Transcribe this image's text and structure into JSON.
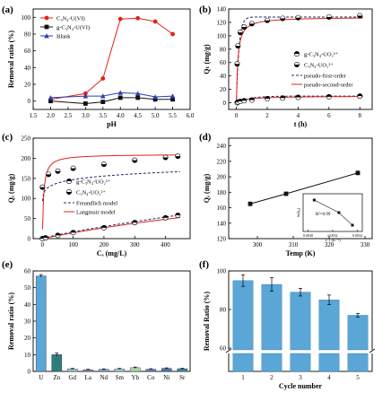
{
  "panels": {
    "a": {
      "letter": "(a)"
    },
    "b": {
      "letter": "(b)"
    },
    "c": {
      "letter": "(c)"
    },
    "d": {
      "letter": "(d)"
    },
    "e": {
      "letter": "(e)"
    },
    "f": {
      "letter": "(f)"
    }
  },
  "colors": {
    "red": "#e2231a",
    "black": "#111111",
    "blue": "#2b3fb0",
    "navy": "#1f2a6e",
    "teal": "#2e7d78",
    "lightblue": "#5aa6d6",
    "gray": "#9a9a9a"
  },
  "chart_data": [
    {
      "id": "a",
      "type": "line",
      "xlabel": "pH",
      "ylabel": "Removal ratio (%)",
      "xlim": [
        1.5,
        6.0
      ],
      "ylim": [
        -10,
        110
      ],
      "xticks": [
        1.5,
        2.0,
        2.5,
        3.0,
        3.5,
        4.0,
        4.5,
        5.0,
        5.5,
        6.0
      ],
      "xticklabels": [
        "1.5",
        "2.0",
        "2.5",
        "3.0",
        "3.5",
        "4.0",
        "4.5",
        "5.0",
        "5.5",
        "6.0"
      ],
      "yticks": [
        0,
        20,
        40,
        60,
        80,
        100
      ],
      "legend": "top-left",
      "series": [
        {
          "name": "C₃N₄-U(VI)",
          "color": "#e2231a",
          "marker": "circle",
          "x": [
            2.0,
            3.0,
            3.5,
            4.0,
            4.5,
            5.0,
            5.5
          ],
          "y": [
            2,
            9,
            27,
            98,
            99,
            95,
            80
          ]
        },
        {
          "name": "g-C₃N₄-U(VI)",
          "color": "#111111",
          "marker": "square",
          "x": [
            2.0,
            3.0,
            3.5,
            4.0,
            4.5,
            5.0,
            5.5
          ],
          "y": [
            0,
            -3,
            -1,
            4,
            4,
            2,
            2
          ]
        },
        {
          "name": "Blank",
          "color": "#2b3fb0",
          "marker": "triangle",
          "x": [
            2.0,
            3.0,
            3.5,
            4.0,
            4.5,
            5.0,
            5.5
          ],
          "y": [
            4,
            6,
            6,
            10,
            9,
            5,
            6
          ]
        }
      ]
    },
    {
      "id": "b",
      "type": "scatter",
      "xlabel": "t (h)",
      "ylabel": "Qₜ (mg/g)",
      "xlim": [
        -0.5,
        8.8
      ],
      "ylim": [
        -10,
        140
      ],
      "xticks": [
        0,
        2,
        4,
        6,
        8
      ],
      "yticks": [
        0,
        20,
        40,
        60,
        80,
        100,
        120,
        140
      ],
      "legend": "center-right",
      "series": [
        {
          "name": "g-C₃N₄-UO₂²⁺",
          "marker": "half-top",
          "x": [
            0.05,
            0.1,
            0.25,
            0.5,
            1,
            2,
            3,
            4,
            6,
            8
          ],
          "y": [
            0,
            1,
            2,
            3,
            4,
            6,
            7,
            8,
            9,
            10
          ]
        },
        {
          "name": "C₃N₄-UO₂²⁺",
          "marker": "half-bottom",
          "x": [
            0.05,
            0.1,
            0.25,
            0.5,
            1,
            2,
            3,
            4,
            6,
            8
          ],
          "y": [
            58,
            85,
            105,
            113,
            118,
            123,
            126,
            127,
            128,
            130
          ]
        }
      ],
      "fits": [
        {
          "name": "pseudo-first-order",
          "style": "dashed",
          "color": "#1f2a6e"
        },
        {
          "name": "pseudo-second-order",
          "style": "solid",
          "color": "#e2231a"
        }
      ]
    },
    {
      "id": "c",
      "type": "scatter",
      "xlabel": "Cₑ (mg/L)",
      "ylabel": "Qₑ (mg/g)",
      "xlim": [
        -30,
        480
      ],
      "ylim": [
        0,
        250
      ],
      "xticks": [
        0,
        100,
        200,
        300,
        400
      ],
      "yticks": [
        0,
        50,
        100,
        150,
        200,
        250
      ],
      "legend": "center-right",
      "series": [
        {
          "name": "g-C₃N₄-UO₂²⁺",
          "marker": "half-top",
          "x": [
            0,
            10,
            50,
            100,
            200,
            300,
            400,
            440
          ],
          "y": [
            0,
            2,
            8,
            15,
            27,
            40,
            52,
            58
          ]
        },
        {
          "name": "C₃N₄-UO₂²⁺",
          "marker": "half-bottom",
          "x": [
            0,
            20,
            50,
            100,
            200,
            300,
            400,
            440
          ],
          "y": [
            128,
            160,
            168,
            175,
            185,
            195,
            202,
            205
          ]
        }
      ],
      "fits": [
        {
          "name": "Freundlich model",
          "style": "dashed",
          "color": "#1f2a6e"
        },
        {
          "name": "Langmuir model",
          "style": "solid",
          "color": "#e2231a"
        }
      ]
    },
    {
      "id": "d",
      "type": "line",
      "xlabel": "Temp (K)",
      "ylabel": "Qₑ (mg/g)",
      "xlim": [
        292,
        332
      ],
      "ylim": [
        120,
        250
      ],
      "xticks": [
        300,
        310,
        320,
        330
      ],
      "yticks": [
        120,
        140,
        160,
        180,
        200,
        220,
        240
      ],
      "series": [
        {
          "name": "",
          "color": "#111111",
          "marker": "square",
          "x": [
            298,
            308,
            328
          ],
          "y": [
            165,
            178,
            205
          ]
        }
      ],
      "inset": {
        "xlabel": "1/T (K⁻¹)",
        "ylabel": "ln(k₀)",
        "annotation": "R²=0.99",
        "xticks": [
          0.003,
          0.0032,
          0.0034
        ],
        "xticklabels": [
          "0.0030",
          "0.0032",
          "0.0034"
        ],
        "x": [
          0.00305,
          0.00325,
          0.00336
        ],
        "y": [
          0.9,
          0.7,
          0.5
        ]
      }
    },
    {
      "id": "e",
      "type": "bar",
      "xlabel": "",
      "ylabel": "Removal ratio (%)",
      "ylim": [
        0,
        60
      ],
      "yticks": [
        0,
        10,
        20,
        30,
        40,
        50,
        60
      ],
      "categories": [
        "U",
        "Zn",
        "Gd",
        "La",
        "Nd",
        "Sm",
        "Yb",
        "Co",
        "Ni",
        "Sr"
      ],
      "values": [
        57,
        10,
        1.5,
        1,
        1.2,
        1.5,
        2.2,
        1.3,
        1.8,
        1.6
      ],
      "errors": [
        0.8,
        1.0,
        0.3,
        0.3,
        0.3,
        0.3,
        0.4,
        0.3,
        0.3,
        0.3
      ],
      "colors": [
        "#5aa6d6",
        "#2e7d78",
        "#9ac9d8",
        "#7f8fb8",
        "#7fa7c8",
        "#9fd1e0",
        "#a7d9a7",
        "#6c7fbf",
        "#4a78a8",
        "#3c8ca0"
      ]
    },
    {
      "id": "f",
      "type": "bar",
      "xlabel": "Cycle number",
      "ylabel": "Removal Ratio (%)",
      "ylim": [
        0,
        100
      ],
      "yticks": [
        60,
        80,
        100
      ],
      "axis_break": true,
      "categories": [
        "1",
        "2",
        "3",
        "4",
        "5"
      ],
      "values": [
        95,
        93,
        89,
        85,
        77
      ],
      "errors": [
        3,
        3.5,
        2,
        2.5,
        1
      ],
      "color": "#5aa6d6"
    }
  ]
}
